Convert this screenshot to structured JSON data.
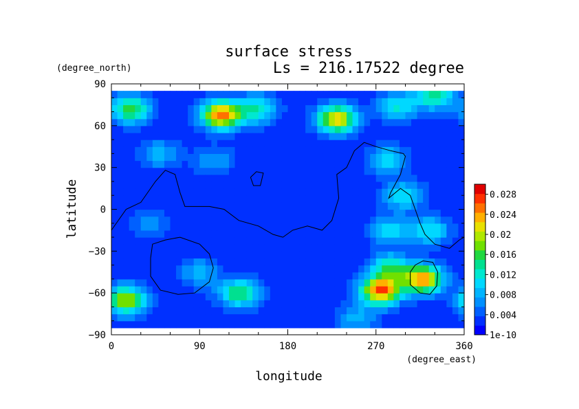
{
  "chart_data": {
    "type": "heatmap",
    "title": "surface stress",
    "subtitle": "Ls = 216.17522 degree",
    "xlabel": "longitude",
    "ylabel": "latitude",
    "x_unit": "(degree_east)",
    "y_unit": "(degree_north)",
    "xlim": [
      0,
      360
    ],
    "ylim": [
      -90,
      90
    ],
    "data_lat_extent": [
      -85,
      85
    ],
    "x_ticks": [
      "0",
      "90",
      "180",
      "270",
      "360"
    ],
    "y_ticks": [
      "90",
      "60",
      "30",
      "0",
      "−30",
      "−60",
      "−90"
    ],
    "colorbar": {
      "labels": [
        "0.028",
        "0.024",
        "0.02",
        "0.016",
        "0.012",
        "0.008",
        "0.004",
        "1e-10"
      ],
      "min": 0,
      "max": 0.03,
      "colors": [
        "#0000ff",
        "#0030ff",
        "#0060ff",
        "#0090ff",
        "#00b4ff",
        "#00d8ff",
        "#00e8d0",
        "#00e090",
        "#20d840",
        "#70e000",
        "#b0e800",
        "#e8e000",
        "#ffb000",
        "#ff7000",
        "#ff3000",
        "#e00000"
      ]
    },
    "base_value": 0.0025,
    "features": [
      {
        "lon": 112,
        "lat": 68,
        "value": 0.023
      },
      {
        "lon": 20,
        "lat": 72,
        "value": 0.014
      },
      {
        "lon": 148,
        "lat": 72,
        "value": 0.011
      },
      {
        "lon": 230,
        "lat": 65,
        "value": 0.02
      },
      {
        "lon": 292,
        "lat": 74,
        "value": 0.009
      },
      {
        "lon": 330,
        "lat": 82,
        "value": 0.012
      },
      {
        "lon": 282,
        "lat": 36,
        "value": 0.008
      },
      {
        "lon": 298,
        "lat": 10,
        "value": 0.009
      },
      {
        "lon": 285,
        "lat": -15,
        "value": 0.008
      },
      {
        "lon": 325,
        "lat": -15,
        "value": 0.009
      },
      {
        "lon": 318,
        "lat": -50,
        "value": 0.022
      },
      {
        "lon": 275,
        "lat": -58,
        "value": 0.024
      },
      {
        "lon": 285,
        "lat": -42,
        "value": 0.012
      },
      {
        "lon": 15,
        "lat": -65,
        "value": 0.017
      },
      {
        "lon": 130,
        "lat": -60,
        "value": 0.013
      },
      {
        "lon": 90,
        "lat": -45,
        "value": 0.006
      },
      {
        "lon": 50,
        "lat": 40,
        "value": 0.006
      },
      {
        "lon": 105,
        "lat": 35,
        "value": 0.005
      },
      {
        "lon": 250,
        "lat": -78,
        "value": 0.006
      },
      {
        "lon": 40,
        "lat": -10,
        "value": 0.004
      }
    ],
    "outlines": [
      {
        "name": "dichotomy-boundary",
        "points": [
          [
            0,
            -15
          ],
          [
            15,
            0
          ],
          [
            30,
            5
          ],
          [
            45,
            20
          ],
          [
            55,
            28
          ],
          [
            65,
            25
          ],
          [
            70,
            12
          ],
          [
            75,
            2
          ],
          [
            100,
            2
          ],
          [
            115,
            0
          ],
          [
            130,
            -8
          ],
          [
            150,
            -12
          ],
          [
            165,
            -18
          ],
          [
            175,
            -20
          ],
          [
            185,
            -15
          ],
          [
            200,
            -12
          ],
          [
            215,
            -15
          ],
          [
            225,
            -8
          ],
          [
            232,
            8
          ],
          [
            230,
            25
          ],
          [
            240,
            30
          ],
          [
            248,
            42
          ],
          [
            258,
            48
          ],
          [
            270,
            45
          ],
          [
            285,
            42
          ],
          [
            298,
            40
          ],
          [
            300,
            38
          ],
          [
            295,
            25
          ],
          [
            285,
            12
          ],
          [
            283,
            8
          ],
          [
            295,
            15
          ],
          [
            305,
            10
          ],
          [
            310,
            0
          ],
          [
            315,
            -10
          ],
          [
            320,
            -18
          ],
          [
            330,
            -25
          ],
          [
            345,
            -28
          ],
          [
            355,
            -22
          ],
          [
            360,
            -20
          ]
        ]
      },
      {
        "name": "basin-left",
        "points": [
          [
            40,
            -35
          ],
          [
            42,
            -25
          ],
          [
            55,
            -22
          ],
          [
            70,
            -20
          ],
          [
            90,
            -25
          ],
          [
            100,
            -32
          ],
          [
            104,
            -42
          ],
          [
            100,
            -52
          ],
          [
            85,
            -60
          ],
          [
            68,
            -61
          ],
          [
            50,
            -58
          ],
          [
            40,
            -48
          ],
          [
            40,
            -35
          ]
        ]
      },
      {
        "name": "basin-right",
        "points": [
          [
            305,
            -45
          ],
          [
            310,
            -40
          ],
          [
            318,
            -37
          ],
          [
            328,
            -38
          ],
          [
            333,
            -45
          ],
          [
            332,
            -55
          ],
          [
            325,
            -61
          ],
          [
            315,
            -60
          ],
          [
            305,
            -54
          ],
          [
            305,
            -45
          ]
        ]
      },
      {
        "name": "small-feature",
        "points": [
          [
            142,
            23
          ],
          [
            148,
            27
          ],
          [
            155,
            26
          ],
          [
            152,
            17
          ],
          [
            145,
            17
          ],
          [
            142,
            23
          ]
        ]
      }
    ]
  }
}
